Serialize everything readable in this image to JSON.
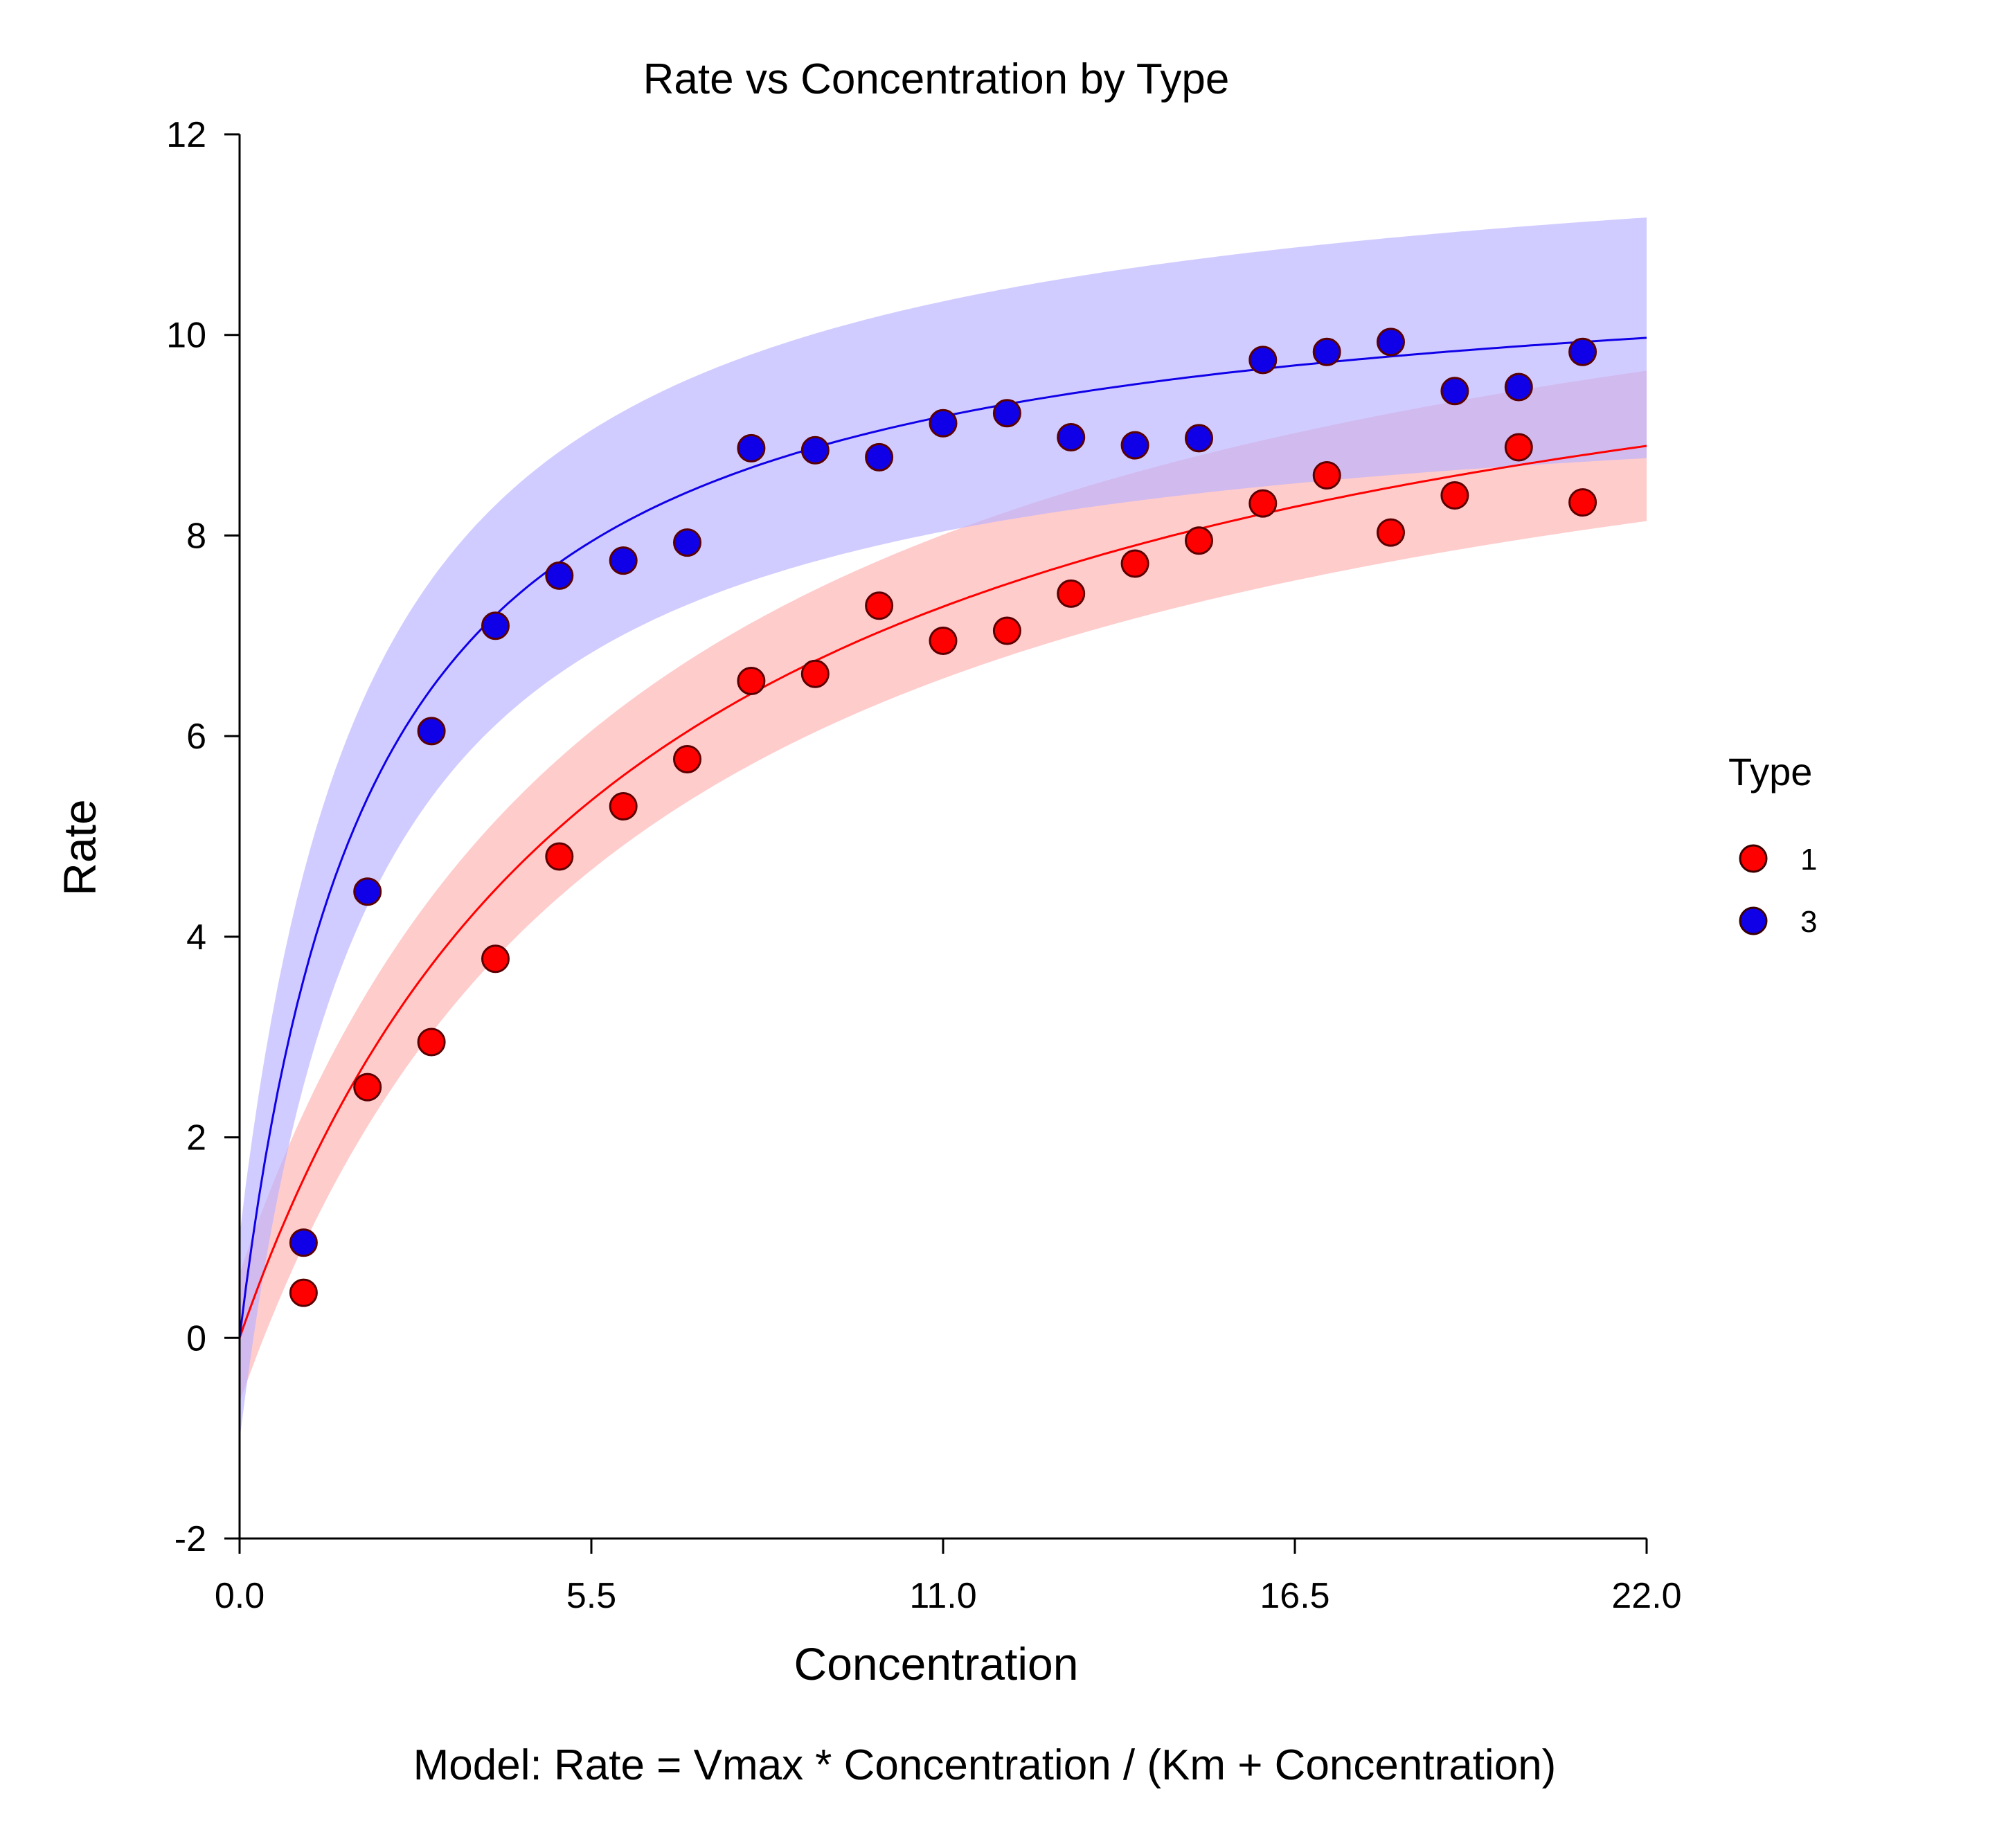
{
  "chart_data": {
    "type": "scatter",
    "title": "Rate vs Concentration by Type",
    "xlabel": "Concentration",
    "ylabel": "Rate",
    "caption": "Model: Rate = Vmax * Concentration / (Km + Concentration)",
    "xlim": [
      0.0,
      22.0
    ],
    "ylim": [
      -2,
      12
    ],
    "xticks": [
      0.0,
      5.5,
      11.0,
      16.5,
      22.0
    ],
    "xtick_labels": [
      "0.0",
      "5.5",
      "11.0",
      "16.5",
      "22.0"
    ],
    "yticks": [
      -2,
      0,
      2,
      4,
      6,
      8,
      10,
      12
    ],
    "ytick_labels": [
      "-2",
      "0",
      "2",
      "4",
      "6",
      "8",
      "10",
      "12"
    ],
    "grid": false,
    "legend": {
      "title": "Type",
      "position": "right"
    },
    "series": [
      {
        "name": "1",
        "color": "#ff0000",
        "band_color": "#ffb0b0",
        "model": {
          "vmax": 11.4,
          "km": 6.2
        },
        "band_halfwidth": 0.75,
        "x": [
          1,
          2,
          3,
          4,
          5,
          6,
          7,
          8,
          9,
          10,
          11,
          12,
          13,
          14,
          15,
          16,
          17,
          18,
          19,
          20,
          21
        ],
        "y": [
          0.45,
          2.5,
          2.95,
          3.78,
          4.8,
          5.3,
          5.77,
          6.55,
          6.62,
          7.3,
          6.95,
          7.05,
          7.42,
          7.72,
          7.95,
          8.32,
          8.6,
          8.03,
          8.4,
          8.88,
          8.33
        ]
      },
      {
        "name": "3",
        "color": "#1000e8",
        "band_color": "#b8b0ff",
        "model": {
          "vmax": 10.9,
          "km": 2.05
        },
        "band_halfwidth": 1.2,
        "x": [
          1,
          2,
          3,
          4,
          5,
          6,
          7,
          8,
          9,
          10,
          11,
          12,
          13,
          14,
          15,
          16,
          17,
          18,
          19,
          20,
          21
        ],
        "y": [
          0.95,
          4.45,
          6.05,
          7.1,
          7.6,
          7.75,
          7.93,
          8.87,
          8.85,
          8.78,
          9.12,
          9.22,
          8.98,
          8.9,
          8.97,
          9.75,
          9.83,
          9.93,
          9.44,
          9.48,
          9.83
        ]
      }
    ]
  }
}
